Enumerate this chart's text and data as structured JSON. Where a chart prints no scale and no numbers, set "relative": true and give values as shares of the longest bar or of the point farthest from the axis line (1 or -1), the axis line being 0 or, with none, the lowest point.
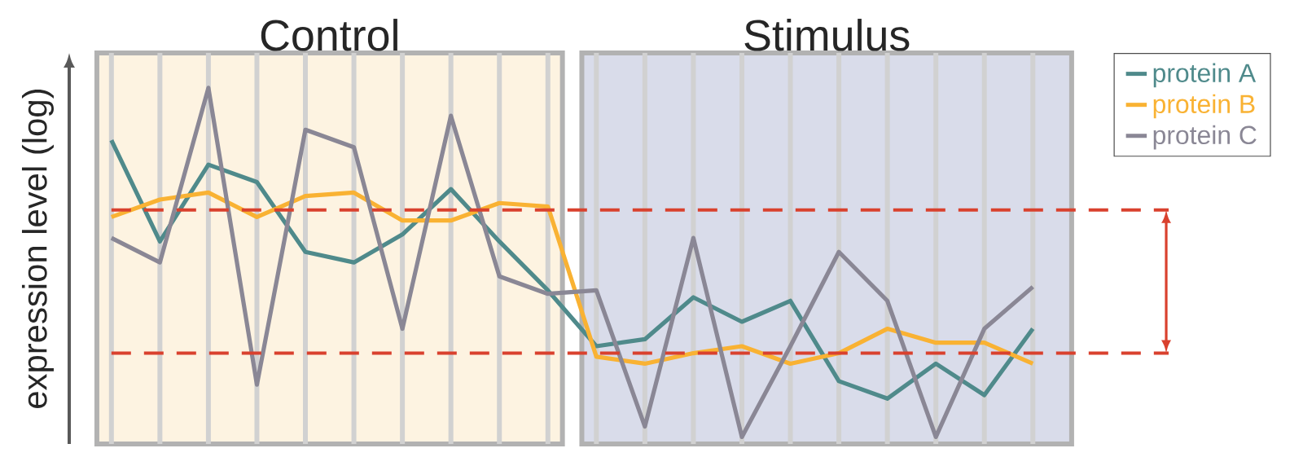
{
  "chart_data": {
    "type": "line",
    "ylabel": "expression level (log)",
    "relative": true,
    "grid": "x",
    "legend": "top right",
    "marker": "none",
    "line_style": "solid",
    "categories": [
      null,
      null,
      null,
      null,
      null,
      null,
      null,
      null,
      null,
      null,
      null,
      null,
      null,
      null,
      null,
      null,
      null,
      null,
      null,
      null
    ],
    "series": [
      {
        "name": "protein A",
        "color": "#4f8a8b",
        "values": [
          0.85,
          0.56,
          0.78,
          0.73,
          0.53,
          0.5,
          0.58,
          0.71,
          0.56,
          0.42,
          0.26,
          0.28,
          0.4,
          0.33,
          0.39,
          0.16,
          0.11,
          0.21,
          0.12,
          0.31
        ]
      },
      {
        "name": "protein B",
        "color": "#f9b233",
        "values": [
          0.63,
          0.68,
          0.7,
          0.63,
          0.69,
          0.7,
          0.62,
          0.62,
          0.67,
          0.66,
          0.23,
          0.21,
          0.24,
          0.26,
          0.21,
          0.24,
          0.31,
          0.27,
          0.27,
          0.21
        ]
      },
      {
        "name": "protein C",
        "color": "#8a8795",
        "values": [
          0.57,
          0.5,
          1.0,
          0.15,
          0.88,
          0.83,
          0.31,
          0.92,
          0.46,
          0.41,
          0.42,
          0.03,
          0.57,
          0.0,
          0.26,
          0.53,
          0.39,
          0.0,
          0.31,
          0.43
        ]
      }
    ],
    "ref_lines": [
      {
        "axis": "y",
        "value": 0.65,
        "color": "#d9412e",
        "line_style": "dashed"
      },
      {
        "axis": "y",
        "value": 0.24,
        "color": "#d9412e",
        "line_style": "dashed"
      }
    ],
    "annotations": [
      "Control",
      "Stimulus"
    ]
  }
}
